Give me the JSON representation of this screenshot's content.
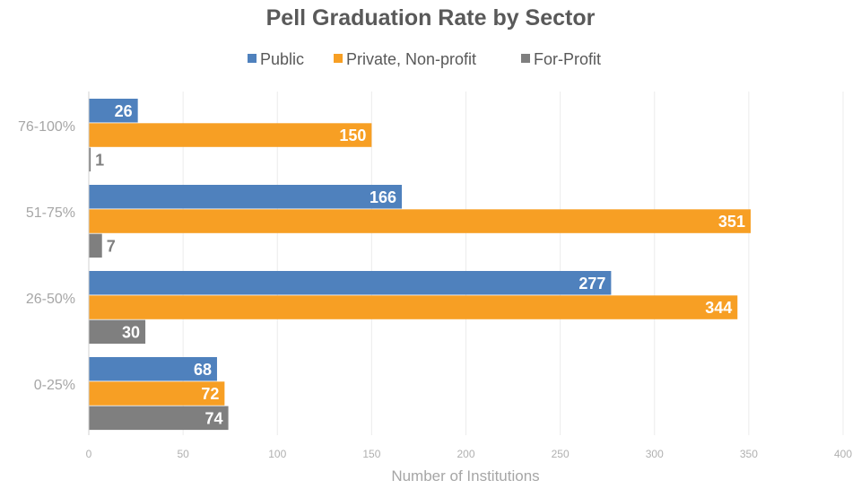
{
  "chart_data": {
    "type": "bar",
    "orientation": "horizontal",
    "title": "Pell Graduation Rate by Sector",
    "xlabel": "Number of Institutions",
    "ylabel": "",
    "categories": [
      "76-100%",
      "51-75%",
      "26-50%",
      "0-25%"
    ],
    "series": [
      {
        "name": "Public",
        "color": "#4f81bd",
        "values": [
          26,
          166,
          277,
          68
        ]
      },
      {
        "name": "Private, Non-profit",
        "color": "#f79f24",
        "values": [
          150,
          351,
          344,
          72
        ]
      },
      {
        "name": "For-Profit",
        "color": "#7f7f7f",
        "values": [
          1,
          7,
          30,
          74
        ]
      }
    ],
    "xlim": [
      0,
      400
    ],
    "xticks": [
      0,
      50,
      100,
      150,
      200,
      250,
      300,
      350,
      400
    ],
    "grid": true,
    "legend": "top",
    "data_labels": true
  }
}
